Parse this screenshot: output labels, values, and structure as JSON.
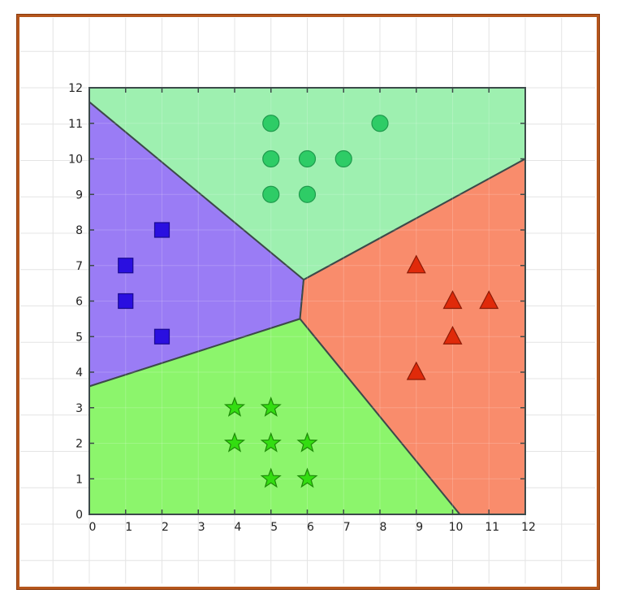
{
  "chart_data": {
    "type": "scatter",
    "xlim": [
      0,
      12
    ],
    "ylim": [
      0,
      12
    ],
    "x_ticks": [
      "0",
      "1",
      "2",
      "3",
      "4",
      "5",
      "6",
      "7",
      "8",
      "9",
      "10",
      "11",
      "12"
    ],
    "y_ticks": [
      "0",
      "1",
      "2",
      "3",
      "4",
      "5",
      "6",
      "7",
      "8",
      "9",
      "10",
      "11",
      "12"
    ],
    "grid": true,
    "regions": [
      {
        "class": "circles",
        "color": "#9ef0b0",
        "polygon": [
          [
            0,
            11.6
          ],
          [
            0,
            12
          ],
          [
            12,
            12
          ],
          [
            12,
            10
          ],
          [
            5.9,
            6.6
          ]
        ]
      },
      {
        "class": "squares",
        "color": "#9a7cf5",
        "polygon": [
          [
            0,
            3.6
          ],
          [
            0,
            11.6
          ],
          [
            5.9,
            6.6
          ],
          [
            5.8,
            5.5
          ]
        ]
      },
      {
        "class": "stars",
        "color": "#8cf56c",
        "polygon": [
          [
            0,
            0
          ],
          [
            0,
            3.6
          ],
          [
            5.8,
            5.5
          ],
          [
            10.2,
            0
          ]
        ]
      },
      {
        "class": "triangles",
        "color": "#f98c6c",
        "polygon": [
          [
            5.9,
            6.6
          ],
          [
            12,
            10
          ],
          [
            12,
            0
          ],
          [
            10.2,
            0
          ],
          [
            5.8,
            5.5
          ]
        ]
      }
    ],
    "series": [
      {
        "marker": "circle",
        "color": "#2ecc66",
        "points": [
          [
            5,
            11
          ],
          [
            8,
            11
          ],
          [
            5,
            10
          ],
          [
            6,
            10
          ],
          [
            7,
            10
          ],
          [
            5,
            9
          ],
          [
            6,
            9
          ]
        ]
      },
      {
        "marker": "square",
        "color": "#2a0fe0",
        "points": [
          [
            2,
            8
          ],
          [
            1,
            7
          ],
          [
            1,
            6
          ],
          [
            2,
            5
          ]
        ]
      },
      {
        "marker": "triangle",
        "color": "#e02a0a",
        "points": [
          [
            9,
            7
          ],
          [
            10,
            6
          ],
          [
            11,
            6
          ],
          [
            10,
            5
          ],
          [
            9,
            4
          ]
        ]
      },
      {
        "marker": "star",
        "color": "#33dd11",
        "points": [
          [
            4,
            3
          ],
          [
            5,
            3
          ],
          [
            4,
            2
          ],
          [
            5,
            2
          ],
          [
            6,
            2
          ],
          [
            5,
            1
          ],
          [
            6,
            1
          ]
        ]
      }
    ]
  }
}
